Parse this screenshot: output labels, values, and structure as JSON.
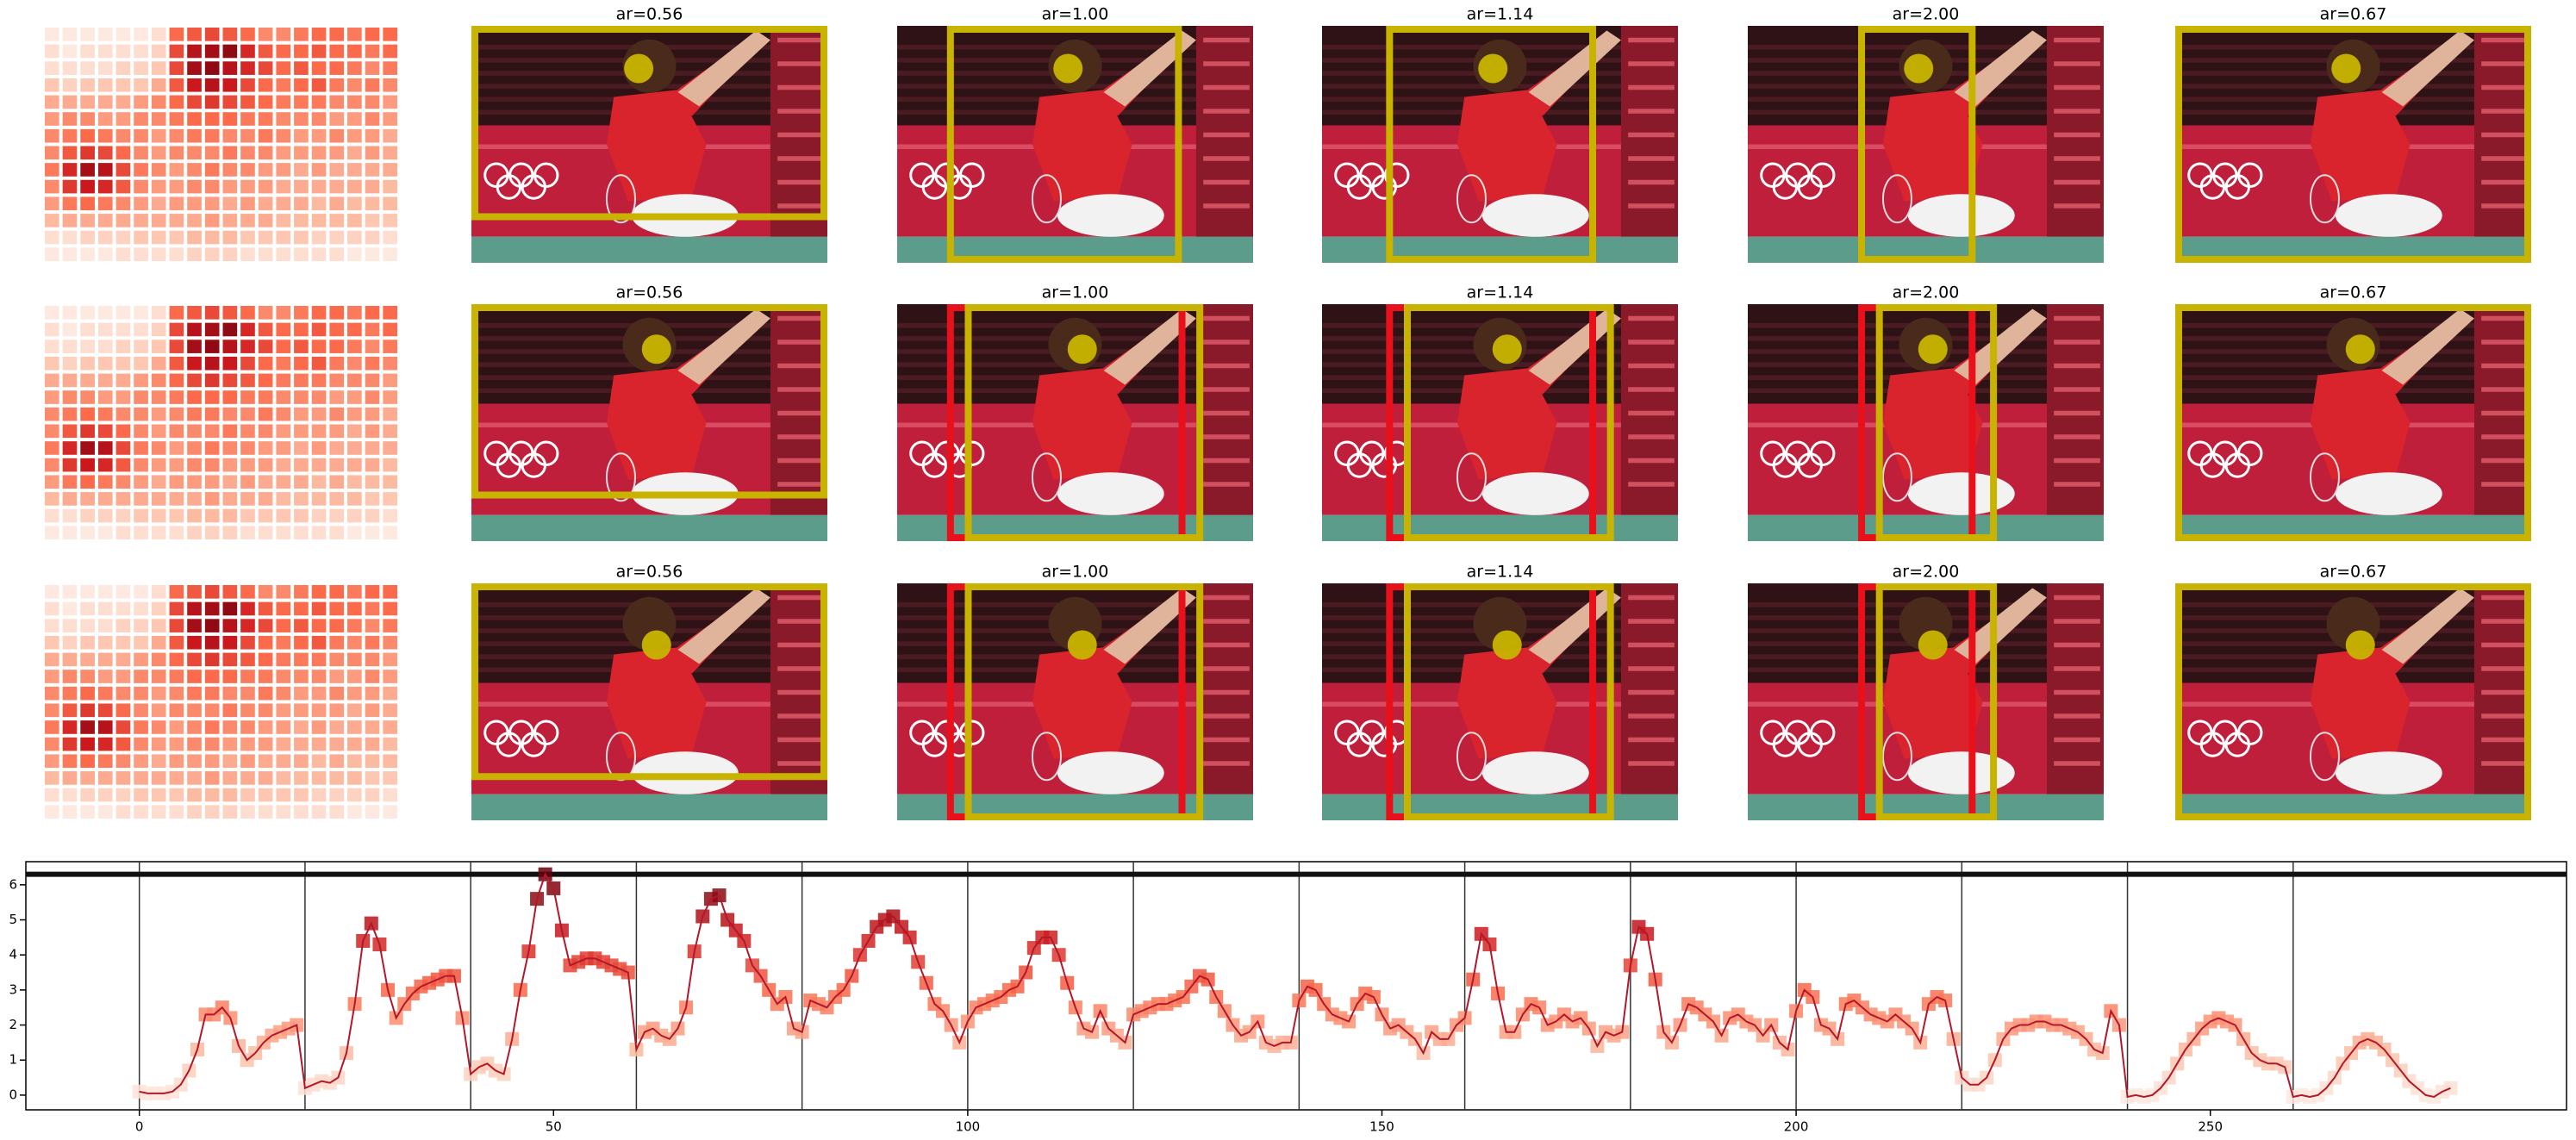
{
  "panels": {
    "titles": [
      "ar=0.56",
      "ar=1.00",
      "ar=1.14",
      "ar=2.00",
      "ar=0.67"
    ],
    "heatmap": [
      [
        0.05,
        0.05,
        0.05,
        0.05,
        0.05,
        0.05,
        0.1,
        0.5,
        0.55,
        0.6,
        0.55,
        0.5,
        0.4,
        0.4,
        0.45,
        0.5,
        0.5,
        0.45,
        0.5,
        0.5
      ],
      [
        0.1,
        0.05,
        0.1,
        0.1,
        0.1,
        0.1,
        0.15,
        0.6,
        0.8,
        0.85,
        0.9,
        0.7,
        0.55,
        0.5,
        0.5,
        0.55,
        0.5,
        0.5,
        0.45,
        0.5
      ],
      [
        0.1,
        0.1,
        0.1,
        0.1,
        0.15,
        0.15,
        0.2,
        0.6,
        0.85,
        0.9,
        0.8,
        0.7,
        0.6,
        0.5,
        0.55,
        0.5,
        0.5,
        0.45,
        0.4,
        0.45
      ],
      [
        0.2,
        0.15,
        0.2,
        0.2,
        0.2,
        0.2,
        0.3,
        0.55,
        0.75,
        0.8,
        0.75,
        0.6,
        0.5,
        0.45,
        0.5,
        0.55,
        0.45,
        0.4,
        0.45,
        0.4
      ],
      [
        0.3,
        0.3,
        0.3,
        0.3,
        0.3,
        0.35,
        0.4,
        0.5,
        0.6,
        0.65,
        0.6,
        0.55,
        0.5,
        0.45,
        0.45,
        0.45,
        0.4,
        0.4,
        0.4,
        0.35
      ],
      [
        0.35,
        0.4,
        0.4,
        0.35,
        0.35,
        0.4,
        0.4,
        0.45,
        0.5,
        0.5,
        0.5,
        0.45,
        0.45,
        0.4,
        0.4,
        0.4,
        0.35,
        0.35,
        0.4,
        0.35
      ],
      [
        0.4,
        0.45,
        0.5,
        0.45,
        0.4,
        0.4,
        0.35,
        0.4,
        0.45,
        0.45,
        0.4,
        0.4,
        0.45,
        0.4,
        0.35,
        0.35,
        0.4,
        0.35,
        0.35,
        0.3
      ],
      [
        0.4,
        0.55,
        0.65,
        0.6,
        0.5,
        0.4,
        0.35,
        0.4,
        0.4,
        0.4,
        0.45,
        0.4,
        0.4,
        0.35,
        0.35,
        0.35,
        0.35,
        0.3,
        0.35,
        0.3
      ],
      [
        0.45,
        0.7,
        0.85,
        0.8,
        0.6,
        0.45,
        0.4,
        0.35,
        0.4,
        0.45,
        0.4,
        0.4,
        0.35,
        0.35,
        0.3,
        0.35,
        0.3,
        0.3,
        0.3,
        0.3
      ],
      [
        0.4,
        0.65,
        0.75,
        0.7,
        0.55,
        0.4,
        0.35,
        0.35,
        0.4,
        0.4,
        0.35,
        0.35,
        0.35,
        0.3,
        0.3,
        0.3,
        0.3,
        0.3,
        0.3,
        0.25
      ],
      [
        0.35,
        0.45,
        0.5,
        0.45,
        0.4,
        0.35,
        0.3,
        0.35,
        0.35,
        0.35,
        0.3,
        0.35,
        0.3,
        0.3,
        0.3,
        0.25,
        0.3,
        0.25,
        0.25,
        0.25
      ],
      [
        0.25,
        0.3,
        0.3,
        0.3,
        0.3,
        0.3,
        0.3,
        0.3,
        0.3,
        0.35,
        0.3,
        0.3,
        0.3,
        0.25,
        0.25,
        0.25,
        0.25,
        0.25,
        0.2,
        0.2
      ],
      [
        0.1,
        0.1,
        0.15,
        0.15,
        0.15,
        0.2,
        0.2,
        0.2,
        0.25,
        0.25,
        0.25,
        0.2,
        0.2,
        0.2,
        0.2,
        0.15,
        0.15,
        0.15,
        0.15,
        0.1
      ],
      [
        0.05,
        0.05,
        0.05,
        0.05,
        0.1,
        0.1,
        0.1,
        0.1,
        0.15,
        0.15,
        0.15,
        0.1,
        0.1,
        0.1,
        0.1,
        0.1,
        0.1,
        0.05,
        0.05,
        0.05
      ]
    ]
  },
  "chart_data": {
    "type": "line",
    "color": "#b2182b",
    "xlim": [
      -13.7,
      293
    ],
    "ylim": [
      -0.42,
      6.66
    ],
    "xticks": [
      0,
      50,
      100,
      150,
      200,
      250
    ],
    "yticks": [
      0,
      1,
      2,
      3,
      4,
      5,
      6
    ],
    "vlines": [
      0,
      20,
      40,
      60,
      80,
      100,
      120,
      140,
      160,
      180,
      200,
      220,
      240,
      260
    ],
    "hline": 6.3,
    "x": [
      0,
      1,
      2,
      3,
      4,
      5,
      6,
      7,
      8,
      9,
      10,
      11,
      12,
      13,
      14,
      15,
      16,
      17,
      18,
      19,
      20,
      21,
      22,
      23,
      24,
      25,
      26,
      27,
      28,
      29,
      30,
      31,
      32,
      33,
      34,
      35,
      36,
      37,
      38,
      39,
      40,
      41,
      42,
      43,
      44,
      45,
      46,
      47,
      48,
      49,
      50,
      51,
      52,
      53,
      54,
      55,
      56,
      57,
      58,
      59,
      60,
      61,
      62,
      63,
      64,
      65,
      66,
      67,
      68,
      69,
      70,
      71,
      72,
      73,
      74,
      75,
      76,
      77,
      78,
      79,
      80,
      81,
      82,
      83,
      84,
      85,
      86,
      87,
      88,
      89,
      90,
      91,
      92,
      93,
      94,
      95,
      96,
      97,
      98,
      99,
      100,
      101,
      102,
      103,
      104,
      105,
      106,
      107,
      108,
      109,
      110,
      111,
      112,
      113,
      114,
      115,
      116,
      117,
      118,
      119,
      120,
      121,
      122,
      123,
      124,
      125,
      126,
      127,
      128,
      129,
      130,
      131,
      132,
      133,
      134,
      135,
      136,
      137,
      138,
      139,
      140,
      141,
      142,
      143,
      144,
      145,
      146,
      147,
      148,
      149,
      150,
      151,
      152,
      153,
      154,
      155,
      156,
      157,
      158,
      159,
      160,
      161,
      162,
      163,
      164,
      165,
      166,
      167,
      168,
      169,
      170,
      171,
      172,
      173,
      174,
      175,
      176,
      177,
      178,
      179,
      180,
      181,
      182,
      183,
      184,
      185,
      186,
      187,
      188,
      189,
      190,
      191,
      192,
      193,
      194,
      195,
      196,
      197,
      198,
      199,
      200,
      201,
      202,
      203,
      204,
      205,
      206,
      207,
      208,
      209,
      210,
      211,
      212,
      213,
      214,
      215,
      216,
      217,
      218,
      219,
      220,
      221,
      222,
      223,
      224,
      225,
      226,
      227,
      228,
      229,
      230,
      231,
      232,
      233,
      234,
      235,
      236,
      237,
      238,
      239,
      240,
      241,
      242,
      243,
      244,
      245,
      246,
      247,
      248,
      249,
      250,
      251,
      252,
      253,
      254,
      255,
      256,
      257,
      258,
      259,
      260,
      261,
      262,
      263,
      264,
      265,
      266,
      267,
      268,
      269,
      270,
      271,
      272,
      273,
      274,
      275,
      276,
      277,
      278,
      279
    ],
    "values": [
      0.1,
      0.05,
      0.05,
      0.05,
      0.1,
      0.3,
      0.7,
      1.3,
      2.3,
      2.3,
      2.5,
      2.2,
      1.4,
      1.0,
      1.2,
      1.5,
      1.7,
      1.8,
      1.9,
      2.0,
      0.2,
      0.3,
      0.4,
      0.35,
      0.5,
      1.2,
      2.6,
      4.4,
      4.9,
      4.3,
      3.0,
      2.2,
      2.6,
      2.9,
      3.1,
      3.2,
      3.3,
      3.4,
      3.4,
      2.2,
      0.6,
      0.8,
      0.9,
      0.7,
      0.6,
      1.6,
      3.0,
      4.1,
      5.6,
      6.3,
      5.9,
      4.7,
      3.7,
      3.8,
      3.9,
      3.9,
      3.8,
      3.7,
      3.6,
      3.5,
      1.3,
      1.8,
      1.9,
      1.7,
      1.6,
      1.9,
      2.5,
      4.1,
      5.1,
      5.6,
      5.7,
      5.0,
      4.7,
      4.4,
      3.7,
      3.4,
      3.0,
      2.6,
      2.8,
      1.9,
      1.8,
      2.7,
      2.6,
      2.5,
      2.8,
      3.0,
      3.4,
      4.0,
      4.4,
      4.8,
      5.0,
      5.1,
      4.8,
      4.5,
      3.8,
      3.2,
      2.6,
      2.4,
      2.0,
      1.5,
      2.1,
      2.5,
      2.6,
      2.7,
      2.8,
      3.0,
      3.1,
      3.5,
      4.2,
      4.5,
      4.5,
      4.0,
      3.2,
      2.5,
      1.9,
      1.8,
      2.4,
      1.9,
      1.7,
      1.5,
      2.3,
      2.4,
      2.5,
      2.6,
      2.6,
      2.7,
      2.8,
      3.1,
      3.4,
      3.3,
      2.8,
      2.4,
      2.0,
      1.7,
      1.8,
      2.1,
      1.5,
      1.4,
      1.5,
      1.5,
      2.7,
      3.1,
      3.0,
      2.6,
      2.3,
      2.2,
      2.1,
      2.6,
      2.9,
      2.8,
      2.3,
      1.9,
      2.0,
      1.8,
      1.6,
      1.2,
      1.8,
      1.6,
      1.6,
      2.0,
      2.2,
      3.3,
      4.6,
      4.3,
      2.9,
      1.8,
      1.8,
      2.3,
      2.6,
      2.5,
      2.0,
      2.1,
      2.3,
      2.1,
      2.2,
      1.9,
      1.4,
      1.8,
      1.7,
      1.8,
      3.7,
      4.8,
      4.6,
      3.3,
      1.8,
      1.5,
      2.0,
      2.6,
      2.5,
      2.3,
      2.1,
      1.7,
      2.2,
      2.3,
      2.1,
      2.0,
      1.7,
      2.0,
      1.5,
      1.3,
      2.4,
      3.0,
      2.8,
      2.0,
      1.9,
      1.6,
      2.6,
      2.7,
      2.5,
      2.3,
      2.2,
      2.1,
      2.3,
      2.1,
      1.9,
      1.5,
      2.6,
      2.8,
      2.7,
      1.6,
      0.5,
      0.3,
      0.3,
      0.5,
      1.0,
      1.6,
      1.9,
      2.0,
      2.0,
      2.1,
      2.1,
      2.0,
      2.0,
      1.9,
      1.8,
      1.6,
      1.3,
      1.2,
      2.4,
      2.0,
      -0.05,
      0.0,
      -0.05,
      0.0,
      0.2,
      0.5,
      0.9,
      1.3,
      1.6,
      1.9,
      2.1,
      2.2,
      2.1,
      2.0,
      1.6,
      1.2,
      1.0,
      0.9,
      0.9,
      0.8,
      -0.05,
      0.0,
      -0.05,
      0.0,
      0.2,
      0.5,
      0.9,
      1.2,
      1.5,
      1.6,
      1.5,
      1.3,
      1.0,
      0.7,
      0.4,
      0.2,
      0.0,
      -0.05,
      0.1,
      0.2
    ]
  }
}
